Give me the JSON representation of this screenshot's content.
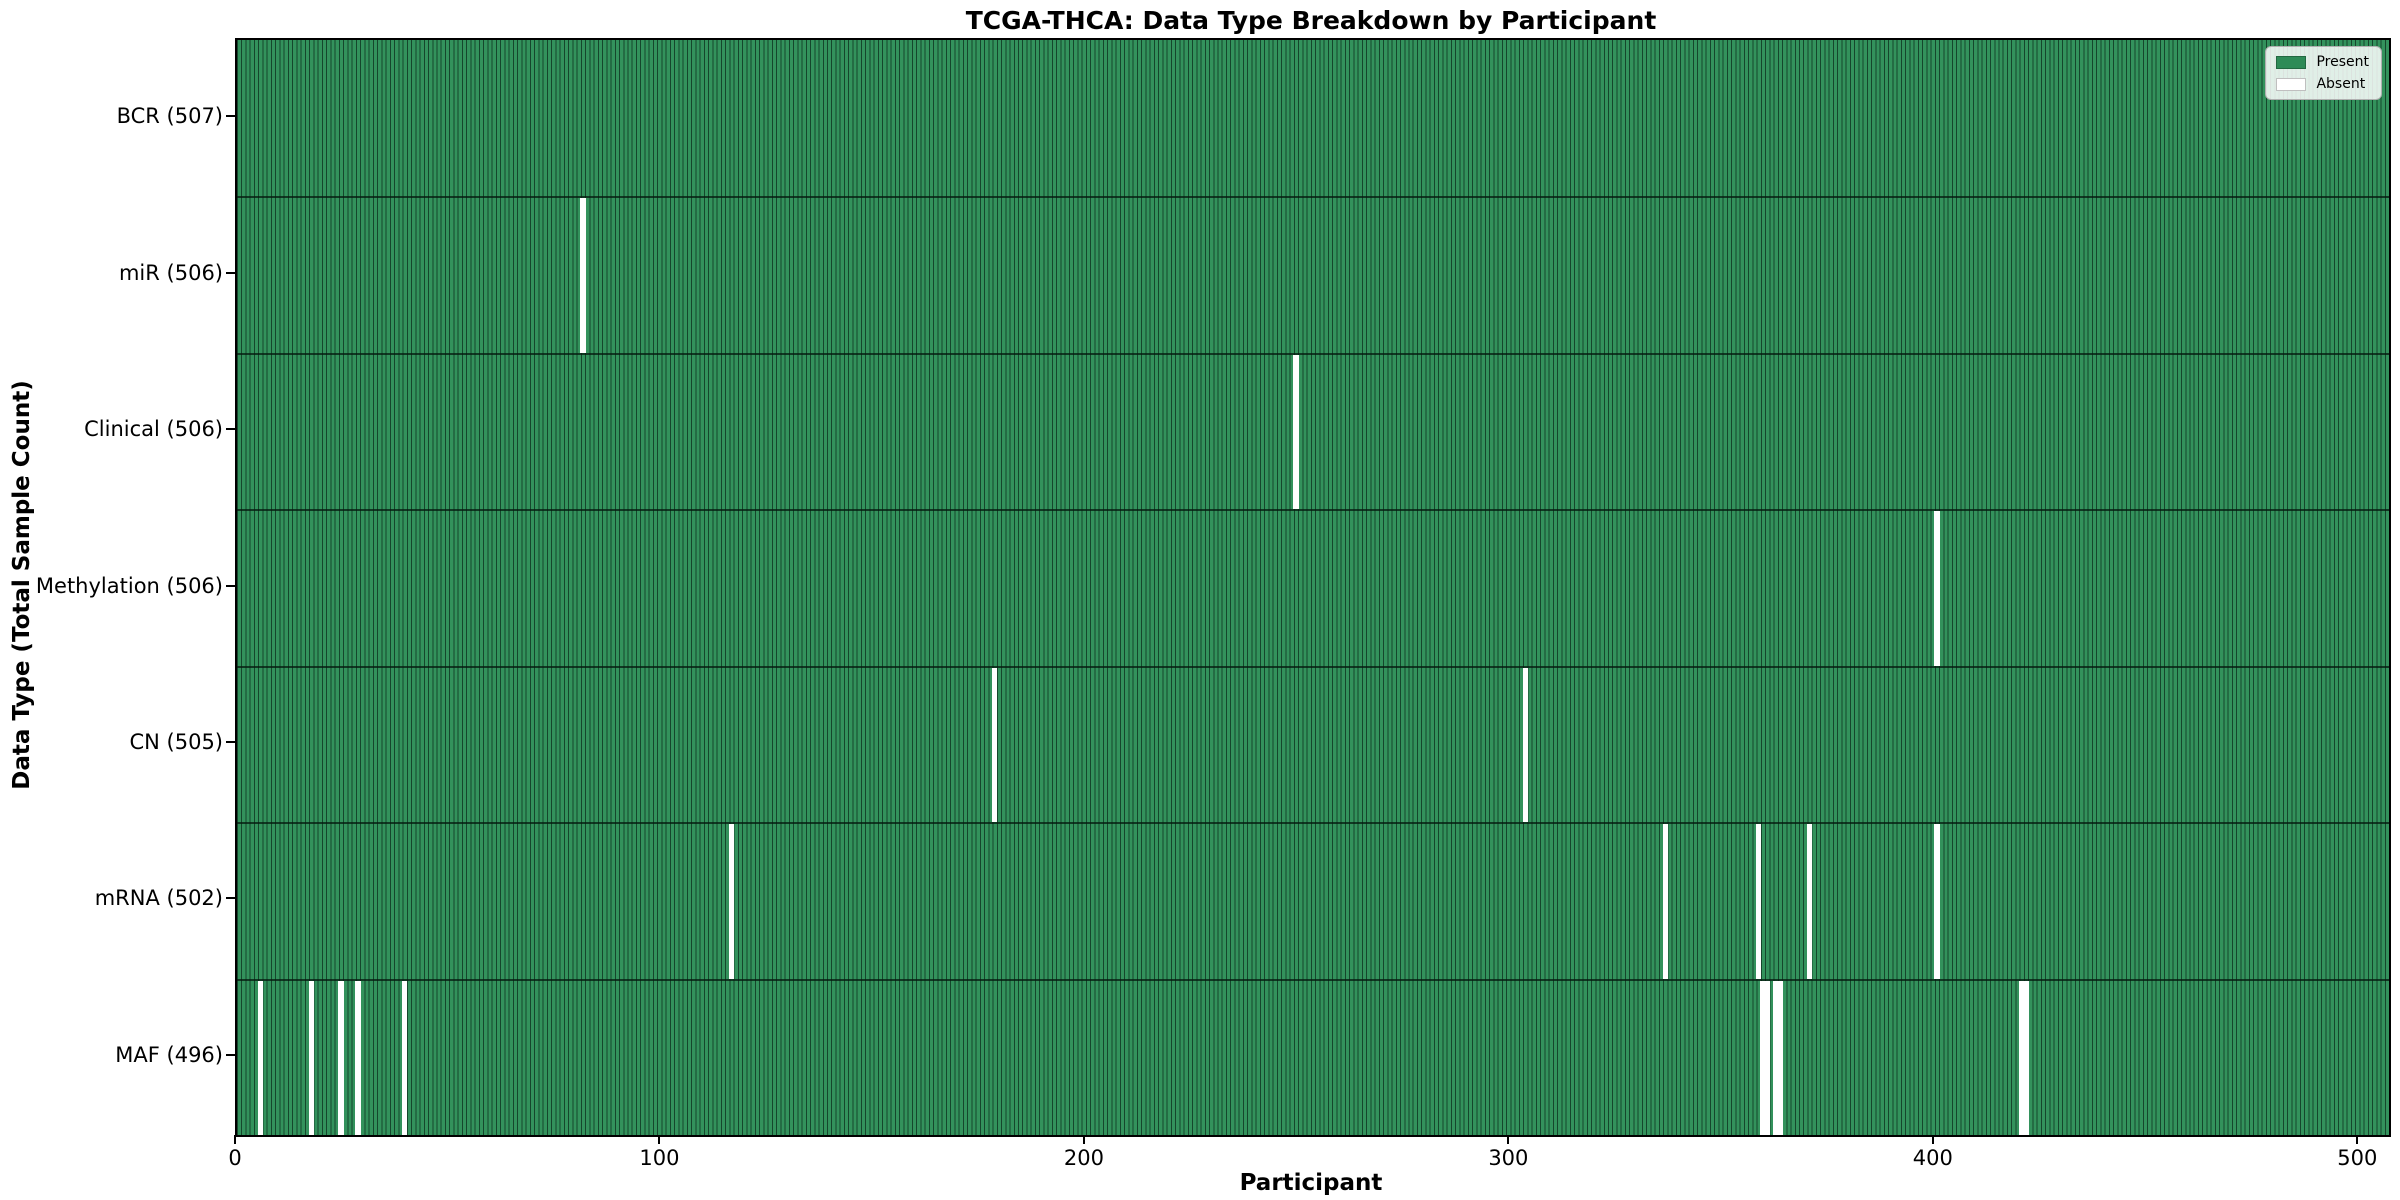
{
  "chart_data": {
    "type": "heatmap",
    "title": "TCGA-THCA: Data Type Breakdown by Participant",
    "xlabel": "Participant",
    "ylabel": "Data Type (Total Sample Count)",
    "x_ticks": [
      0,
      100,
      200,
      300,
      400,
      500
    ],
    "x_range": [
      0,
      507
    ],
    "n_participants": 507,
    "legend": [
      {
        "label": "Present",
        "color": "#2e8b57"
      },
      {
        "label": "Absent",
        "color": "#ffffff"
      }
    ],
    "colors": {
      "present": "#33925c",
      "absent": "#ffffff",
      "cell_edge": "#0a2417",
      "row_line": "#0a2417",
      "spine": "#000000"
    },
    "rows": [
      {
        "label": "BCR (507)",
        "data_type": "BCR",
        "total_count": 507,
        "absent_participants": []
      },
      {
        "label": "miR (506)",
        "data_type": "miR",
        "total_count": 506,
        "absent_participants": [
          81
        ]
      },
      {
        "label": "Clinical (506)",
        "data_type": "Clinical",
        "total_count": 506,
        "absent_participants": [
          249
        ]
      },
      {
        "label": "Methylation (506)",
        "data_type": "Methylation",
        "total_count": 506,
        "absent_participants": [
          400
        ]
      },
      {
        "label": "CN (505)",
        "data_type": "CN",
        "total_count": 505,
        "absent_participants": [
          178,
          303
        ]
      },
      {
        "label": "mRNA (502)",
        "data_type": "mRNA",
        "total_count": 502,
        "absent_participants": [
          116,
          336,
          358,
          370,
          400
        ]
      },
      {
        "label": "MAF (496)",
        "data_type": "MAF",
        "total_count": 496,
        "absent_participants": [
          5,
          17,
          24,
          28,
          39,
          359,
          360,
          362,
          363,
          420,
          421
        ]
      }
    ]
  }
}
